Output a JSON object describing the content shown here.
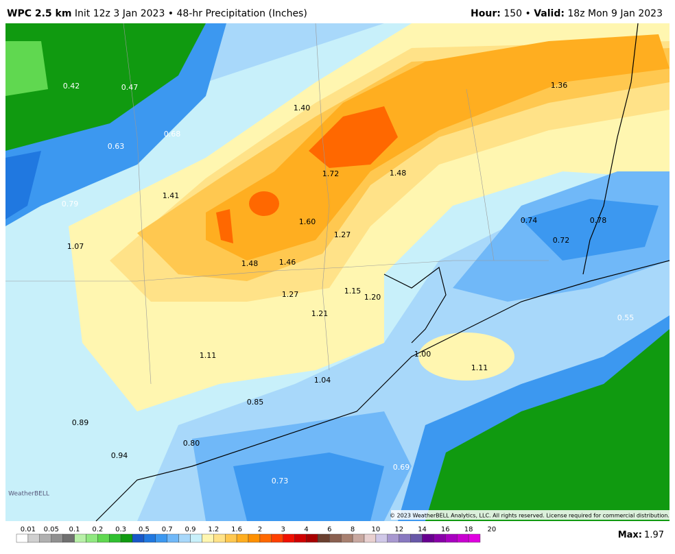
{
  "header": {
    "model": "WPC 2.5 km",
    "description": "Init 12z 3 Jan 2023 • 48-hr Precipitation (Inches)",
    "hour_label": "Hour:",
    "hour": "150 • ",
    "valid_label": "Valid:",
    "valid": "18z Mon 9 Jan 2023"
  },
  "map": {
    "labels": [
      "0.42",
      "0.47",
      "1.40",
      "1.36",
      "0.68",
      "0.63",
      "1.72",
      "1.48",
      "1.41",
      "0.79",
      "1.60",
      "1.27",
      "0.74",
      "0.78",
      "0.72",
      "1.07",
      "1.48",
      "1.46",
      "1.15",
      "1.20",
      "1.27",
      "0.55",
      "1.21",
      "1.11",
      "1.00",
      "1.11",
      "1.04",
      "0.85",
      "0.89",
      "0.80",
      "0.94",
      "0.69",
      "0.73"
    ],
    "copyright": "© 2023 WeatherBELL Analytics, LLC. All rights reserved. License required for commercial distribution.",
    "logo": "WeatherBELL"
  },
  "colorbar": {
    "labels": [
      "0.01",
      "0.05",
      "0.1",
      "0.2",
      "0.3",
      "0.5",
      "0.7",
      "0.9",
      "1.2",
      "1.6",
      "2",
      "3",
      "4",
      "6",
      "8",
      "10",
      "12",
      "14",
      "16",
      "18",
      "20"
    ],
    "colors": [
      "#ffffff",
      "#d0d0d0",
      "#b0b0b0",
      "#909090",
      "#707070",
      "#b8f0a8",
      "#90e880",
      "#60d850",
      "#30c030",
      "#109a10",
      "#1858c8",
      "#2078e0",
      "#3c98f0",
      "#70b8f8",
      "#a8d8fa",
      "#c8f0fa",
      "#fff6b0",
      "#ffe288",
      "#ffc850",
      "#ffae20",
      "#ff9000",
      "#ff6800",
      "#ff4000",
      "#f01000",
      "#d00000",
      "#a80000",
      "#6a4030",
      "#8a6050",
      "#a88070",
      "#c8a8a0",
      "#e8d0d0",
      "#d0c8e8",
      "#a898d0",
      "#8878c0",
      "#6858a8",
      "#680090",
      "#8800a8",
      "#a800c0",
      "#c800d0",
      "#e000e0"
    ],
    "max_label": "Max:",
    "max_value": "1.97"
  }
}
